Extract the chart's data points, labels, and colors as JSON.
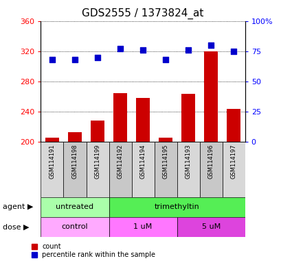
{
  "title": "GDS2555 / 1373824_at",
  "samples": [
    "GSM114191",
    "GSM114198",
    "GSM114199",
    "GSM114192",
    "GSM114194",
    "GSM114195",
    "GSM114193",
    "GSM114196",
    "GSM114197"
  ],
  "counts": [
    206,
    213,
    228,
    265,
    258,
    206,
    264,
    320,
    244
  ],
  "percentiles": [
    68,
    68,
    70,
    77,
    76,
    68,
    76,
    80,
    75
  ],
  "ylim_left": [
    200,
    360
  ],
  "ylim_right": [
    0,
    100
  ],
  "yticks_left": [
    200,
    240,
    280,
    320,
    360
  ],
  "yticks_right": [
    0,
    25,
    50,
    75,
    100
  ],
  "bar_color": "#cc0000",
  "dot_color": "#0000cc",
  "agent_groups": [
    {
      "label": "untreated",
      "start": 0,
      "end": 3,
      "color": "#aaffaa"
    },
    {
      "label": "trimethyltin",
      "start": 3,
      "end": 9,
      "color": "#55ee55"
    }
  ],
  "dose_groups": [
    {
      "label": "control",
      "start": 0,
      "end": 3,
      "color": "#ffaaff"
    },
    {
      "label": "1 uM",
      "start": 3,
      "end": 6,
      "color": "#ff77ff"
    },
    {
      "label": "5 uM",
      "start": 6,
      "end": 9,
      "color": "#dd44dd"
    }
  ],
  "legend_count_label": "count",
  "legend_pct_label": "percentile rank within the sample",
  "agent_label": "agent",
  "dose_label": "dose",
  "bar_width": 0.6,
  "dot_size": 40,
  "title_fontsize": 11,
  "tick_fontsize": 8,
  "label_fontsize": 8,
  "row_label_fontsize": 8,
  "sample_fontsize": 6
}
